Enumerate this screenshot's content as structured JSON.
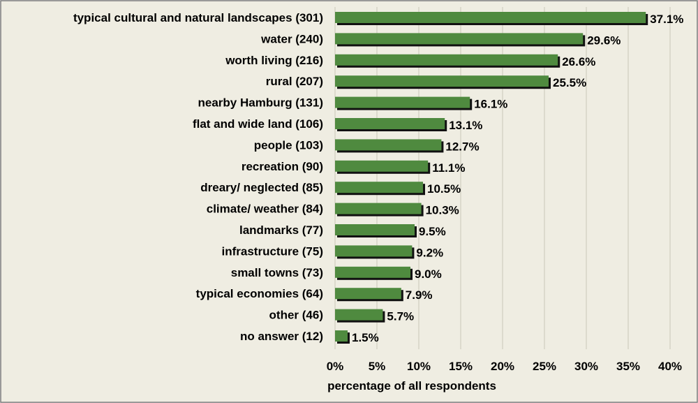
{
  "chart_data": {
    "type": "bar",
    "orientation": "horizontal",
    "categories": [
      "typical cultural and natural landscapes (301)",
      "water (240)",
      "worth living (216)",
      "rural (207)",
      "nearby Hamburg (131)",
      "flat and wide land (106)",
      "people (103)",
      "recreation (90)",
      "dreary/ neglected (85)",
      "climate/ weather (84)",
      "landmarks (77)",
      "infrastructure (75)",
      "small towns (73)",
      "typical economies (64)",
      "other (46)",
      "no answer (12)"
    ],
    "values": [
      37.1,
      29.6,
      26.6,
      25.5,
      16.1,
      13.1,
      12.7,
      11.1,
      10.5,
      10.3,
      9.5,
      9.2,
      9.0,
      7.9,
      5.7,
      1.5
    ],
    "data_labels": [
      "37.1%",
      "29.6%",
      "26.6%",
      "25.5%",
      "16.1%",
      "13.1%",
      "12.7%",
      "11.1%",
      "10.5%",
      "10.3%",
      "9.5%",
      "9.2%",
      "9.0%",
      "7.9%",
      "5.7%",
      "1.5%"
    ],
    "xlim": [
      0,
      40
    ],
    "x_ticks": [
      0,
      5,
      10,
      15,
      20,
      25,
      30,
      35,
      40
    ],
    "x_tick_labels": [
      "0%",
      "5%",
      "10%",
      "15%",
      "20%",
      "25%",
      "30%",
      "35%",
      "40%"
    ],
    "xlabel": "percentage of all respondents",
    "ylabel": "",
    "title": "",
    "grid": "vertical",
    "legend": "none",
    "colors": {
      "bar": "#4f8a3f",
      "bar_shadow": "#111111",
      "background": "#efede2",
      "border": "#7a7a7a",
      "gridline": "#c9c6b8"
    }
  }
}
